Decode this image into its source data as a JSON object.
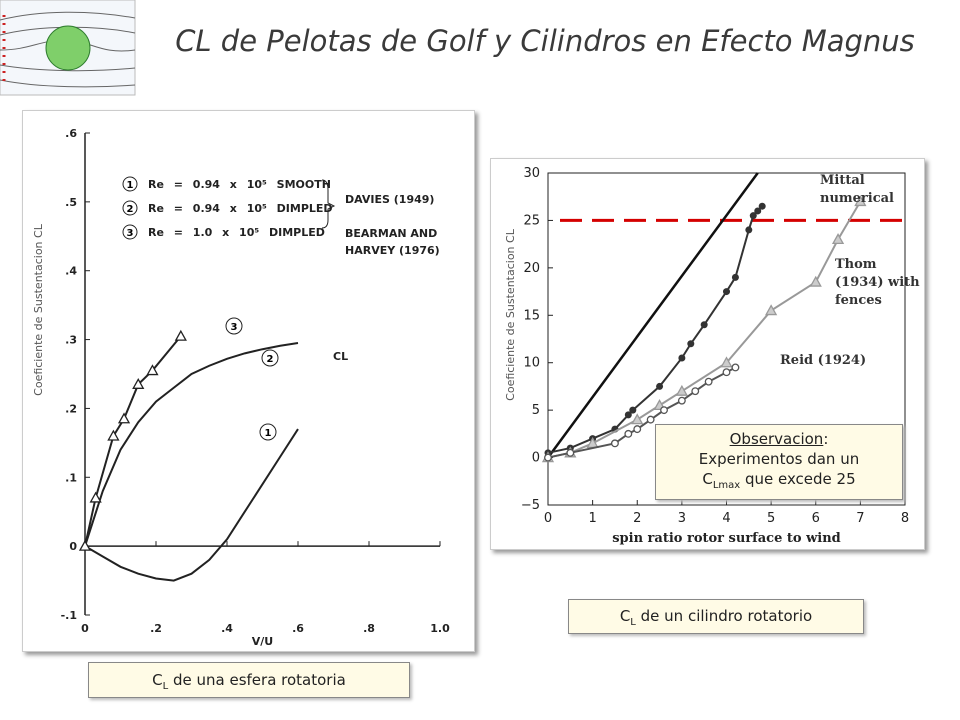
{
  "title": "CL de Pelotas de Golf y Cilindros en Efecto Magnus",
  "chart_data": [
    {
      "type": "line",
      "xlabel": "V/U",
      "ylabel": "Coeficiente de Sustentacion CL",
      "curve_label": "CL",
      "sources": [
        "DAVIES (1949)",
        "BEARMAN AND",
        "HARVEY (1976)"
      ],
      "xlim": [
        0,
        1.0
      ],
      "xticks": [
        0,
        {
          "value": 0.2,
          "label": ".2"
        },
        {
          "value": 0.4,
          "label": ".4"
        },
        {
          "value": 0.6,
          "label": ".6"
        },
        {
          "value": 0.8,
          "label": ".8"
        },
        {
          "value": 1.0,
          "label": "1.0"
        }
      ],
      "ylim": [
        -0.1,
        0.6
      ],
      "yticks": [
        {
          "value": -0.1,
          "label": "-.1"
        },
        0,
        {
          "value": 0.1,
          "label": ".1"
        },
        {
          "value": 0.2,
          "label": ".2"
        },
        {
          "value": 0.3,
          "label": ".3"
        },
        {
          "value": 0.4,
          "label": ".4"
        },
        {
          "value": 0.5,
          "label": ".5"
        },
        {
          "value": 0.6,
          "label": ".6"
        }
      ],
      "series": [
        {
          "name": "Re = 0.94 x 10⁵ SMOOTH",
          "label": "1",
          "color": "#222222",
          "marker": "none",
          "x": [
            0,
            0.05,
            0.1,
            0.15,
            0.2,
            0.25,
            0.3,
            0.35,
            0.4,
            0.45,
            0.5,
            0.55,
            0.6
          ],
          "values": [
            0,
            -0.015,
            -0.03,
            -0.04,
            -0.047,
            -0.05,
            -0.04,
            -0.02,
            0.01,
            0.05,
            0.09,
            0.13,
            0.17
          ]
        },
        {
          "name": "Re = 0.94 x 10⁵ DIMPLED",
          "label": "2",
          "color": "#222222",
          "marker": "none",
          "x": [
            0,
            0.05,
            0.1,
            0.15,
            0.2,
            0.25,
            0.3,
            0.35,
            0.4,
            0.45,
            0.5,
            0.55,
            0.6
          ],
          "values": [
            0,
            0.08,
            0.14,
            0.18,
            0.21,
            0.23,
            0.25,
            0.262,
            0.272,
            0.28,
            0.286,
            0.291,
            0.295
          ]
        },
        {
          "name": "Re = 1.0 x 10⁵ DIMPLED",
          "label": "3",
          "color": "#222222",
          "marker": "triangle",
          "x": [
            0,
            0.03,
            0.08,
            0.11,
            0.15,
            0.19,
            0.27
          ],
          "values": [
            0,
            0.07,
            0.16,
            0.185,
            0.235,
            0.255,
            0.305
          ]
        }
      ]
    },
    {
      "type": "line",
      "xlabel": "spin ratio rotor surface to wind",
      "ylabel": "Coeficiente de Sustentacion CL",
      "xlim": [
        0,
        8
      ],
      "xticks": [
        0,
        1,
        2,
        3,
        4,
        5,
        6,
        7,
        8
      ],
      "ylim": [
        -5,
        30
      ],
      "yticks": [
        {
          "value": -5,
          "label": "−5"
        },
        0,
        5,
        10,
        15,
        20,
        25,
        30
      ],
      "hline": {
        "value": 25,
        "color": "#d40000"
      },
      "series": [
        {
          "color": "#111111",
          "marker": "none",
          "x": [
            0,
            4.7
          ],
          "values": [
            0,
            30
          ]
        },
        {
          "name": "Mittal numerical",
          "color": "#333333",
          "marker": "circle-filled",
          "x": [
            0,
            0.5,
            1,
            1.5,
            1.8,
            1.9,
            2.5,
            3,
            3.2,
            3.5,
            4,
            4.2,
            4.5,
            4.6,
            4.7,
            4.8
          ],
          "values": [
            0.5,
            1,
            2,
            3,
            4.5,
            5,
            7.5,
            10.5,
            12,
            14,
            17.5,
            19,
            24,
            25.5,
            26,
            26.5
          ]
        },
        {
          "name": "Thom (1934) with fences",
          "color": "#999999",
          "marker": "triangle",
          "x": [
            0,
            0.5,
            1,
            2,
            2.5,
            3,
            4,
            5,
            6,
            6.5,
            7
          ],
          "values": [
            0,
            0.5,
            1.5,
            4,
            5.5,
            7,
            10,
            15.5,
            18.5,
            23,
            27
          ]
        },
        {
          "name": "Reid (1924)",
          "color": "#555555",
          "marker": "circle-open",
          "x": [
            0,
            0.5,
            1.5,
            1.8,
            2,
            2.3,
            2.6,
            3,
            3.3,
            3.6,
            4,
            4.2
          ],
          "values": [
            0,
            0.5,
            1.5,
            2.5,
            3,
            4,
            5,
            6,
            7,
            8,
            9,
            9.5
          ]
        }
      ]
    }
  ],
  "captions": [
    {
      "main": "C",
      "sub": "L",
      "rest": " de una esfera rotatoria"
    },
    {
      "main": "C",
      "sub": "L",
      "rest": " de un cilindro rotatorio"
    }
  ],
  "note": {
    "heading": "Observacion",
    "colon": ":",
    "line1": "Experimentos dan un",
    "main": "C",
    "sub": "Lmax",
    "rest": " que excede 25"
  }
}
